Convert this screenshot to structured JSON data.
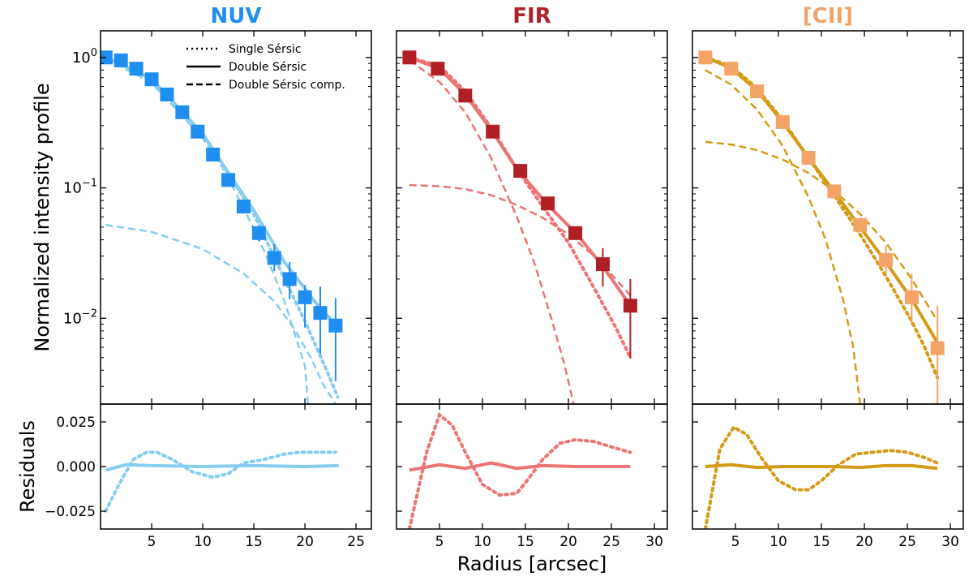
{
  "figure": {
    "ylabel_top": "Normalized intensity profile",
    "ylabel_bottom": "Residuals",
    "xlabel": "Radius [arcsec]",
    "legend": [
      {
        "style": "dotted",
        "label": "Single Sérsic"
      },
      {
        "style": "solid",
        "label": "Double Sérsic"
      },
      {
        "style": "dashed",
        "label": "Double Sérsic comp."
      }
    ],
    "log_tick_labels": [
      {
        "value": 1,
        "mantissa": "10",
        "exp": "0"
      },
      {
        "value": 0.1,
        "mantissa": "10",
        "exp": "−1"
      },
      {
        "value": 0.01,
        "mantissa": "10",
        "exp": "−2"
      }
    ],
    "resid_tick_labels": [
      {
        "value": 0.025,
        "label": "0.025"
      },
      {
        "value": 0,
        "label": "0.000"
      },
      {
        "value": -0.025,
        "label": "−0.025"
      }
    ]
  },
  "chart_data": [
    {
      "type": "scatter",
      "title": "NUV",
      "title_color": "#1f8ef1",
      "point_color": "#1e8ff0",
      "model_color": "#87cdf0",
      "xlim": [
        0,
        26.5
      ],
      "ylim": [
        0.0022,
        1.6
      ],
      "resid_ylim": [
        -0.035,
        0.035
      ],
      "xticks": [
        5,
        10,
        15,
        20,
        25
      ],
      "profile": {
        "x": [
          0.5,
          2.0,
          3.5,
          5.0,
          6.5,
          8.0,
          9.5,
          11.0,
          12.5,
          14.0,
          15.5,
          17.0,
          18.5,
          20.0,
          21.5,
          23.0
        ],
        "y": [
          1.0,
          0.95,
          0.82,
          0.68,
          0.52,
          0.38,
          0.27,
          0.18,
          0.115,
          0.072,
          0.045,
          0.029,
          0.02,
          0.0145,
          0.011,
          0.0088
        ],
        "err_lo": [
          0,
          0,
          0,
          0,
          0,
          0,
          0,
          0,
          0,
          0,
          0.006,
          0.006,
          0.006,
          0.006,
          0.0057,
          0.0055
        ],
        "err_hi": [
          0,
          0,
          0,
          0,
          0,
          0,
          0,
          0,
          0,
          0,
          0.006,
          0.008,
          0.007,
          0.0035,
          0.0065,
          0.0055
        ]
      },
      "double_sersic": {
        "x": [
          0.5,
          5,
          10,
          12,
          15,
          18,
          21,
          23
        ],
        "y": [
          1.0,
          0.68,
          0.26,
          0.15,
          0.067,
          0.027,
          0.0133,
          0.009
        ]
      },
      "single_sersic": {
        "x": [
          0.5,
          5,
          10,
          15,
          18,
          20,
          22,
          23.2
        ],
        "y": [
          1.0,
          0.68,
          0.26,
          0.063,
          0.02,
          0.0095,
          0.0042,
          0.0025
        ]
      },
      "components": [
        {
          "x": [
            0.5,
            5,
            10,
            12,
            14,
            16,
            18,
            20,
            20.3
          ],
          "y": [
            0.98,
            0.64,
            0.24,
            0.14,
            0.07,
            0.033,
            0.0135,
            0.0043,
            0.0022
          ]
        },
        {
          "x": [
            0.5,
            5,
            10,
            14,
            17,
            19,
            20.5,
            21.8,
            23
          ],
          "y": [
            0.052,
            0.046,
            0.034,
            0.022,
            0.0135,
            0.0082,
            0.0051,
            0.0031,
            0.0022
          ]
        }
      ],
      "resid_double": {
        "x": [
          0.5,
          2.5,
          5,
          10,
          15,
          20,
          23.3
        ],
        "y": [
          -0.002,
          0.001,
          0.0005,
          0.0,
          0.0005,
          0.0,
          0.0005
        ]
      },
      "resid_single": {
        "x": [
          0.5,
          1.8,
          3.2,
          4.5,
          5.5,
          7,
          9,
          11,
          12.5,
          14,
          16,
          18,
          19.5,
          21,
          23
        ],
        "y": [
          -0.025,
          -0.01,
          0.004,
          0.008,
          0.008,
          0.004,
          -0.003,
          -0.006,
          -0.004,
          0.002,
          0.004,
          0.007,
          0.008,
          0.008,
          0.008
        ]
      }
    },
    {
      "type": "scatter",
      "title": "FIR",
      "title_color": "#b0222a",
      "point_color": "#b01f24",
      "model_color": "#ec7474",
      "xlim": [
        0,
        31.5
      ],
      "ylim": [
        0.0022,
        1.6
      ],
      "resid_ylim": [
        -0.035,
        0.035
      ],
      "xticks": [
        5,
        10,
        15,
        20,
        25,
        30
      ],
      "profile": {
        "x": [
          1.5,
          4.8,
          8.0,
          11.2,
          14.4,
          17.6,
          20.8,
          24.0,
          27.2
        ],
        "y": [
          1.0,
          0.82,
          0.51,
          0.27,
          0.135,
          0.076,
          0.045,
          0.026,
          0.0125
        ],
        "err_lo": [
          0,
          0,
          0,
          0,
          0,
          0,
          0.003,
          0.0085,
          0.0076
        ],
        "err_hi": [
          0,
          0,
          0,
          0,
          0,
          0,
          0.003,
          0.0085,
          0.0075
        ]
      },
      "double_sersic": {
        "x": [
          1.5,
          5,
          8,
          11,
          14,
          17.5,
          21,
          24,
          27.2
        ],
        "y": [
          1.0,
          0.82,
          0.52,
          0.28,
          0.14,
          0.075,
          0.044,
          0.025,
          0.0125
        ]
      },
      "single_sersic": {
        "x": [
          1.5,
          5,
          8,
          11,
          14,
          17,
          20,
          23,
          25.5,
          27.2
        ],
        "y": [
          1.0,
          0.86,
          0.55,
          0.29,
          0.14,
          0.072,
          0.038,
          0.017,
          0.0085,
          0.005
        ]
      },
      "components": [
        {
          "x": [
            1.5,
            5,
            8,
            11,
            14,
            16,
            18,
            19.5,
            20.6
          ],
          "y": [
            0.95,
            0.65,
            0.38,
            0.17,
            0.06,
            0.027,
            0.01,
            0.0045,
            0.0022
          ]
        },
        {
          "x": [
            1.5,
            5,
            8,
            11,
            14,
            17,
            20,
            23,
            25.5,
            27.2
          ],
          "y": [
            0.105,
            0.103,
            0.098,
            0.088,
            0.074,
            0.059,
            0.044,
            0.03,
            0.02,
            0.015
          ]
        }
      ],
      "resid_double": {
        "x": [
          1.5,
          5,
          8,
          11,
          14,
          17,
          21,
          24,
          27.2
        ],
        "y": [
          -0.002,
          0.001,
          -0.001,
          0.002,
          -0.001,
          0.0005,
          0.0,
          0.0,
          0.0
        ]
      },
      "resid_single": {
        "x": [
          1.5,
          3.5,
          5,
          6.5,
          8,
          10,
          12,
          14,
          15.5,
          17,
          19,
          20.8,
          23,
          25,
          27.2
        ],
        "y": [
          -0.035,
          0.008,
          0.029,
          0.023,
          0.008,
          -0.01,
          -0.016,
          -0.015,
          -0.006,
          0.004,
          0.013,
          0.015,
          0.014,
          0.011,
          0.008
        ]
      }
    },
    {
      "type": "scatter",
      "title": "[CII]",
      "title_color": "#f0a46a",
      "point_color": "#f5a468",
      "model_color": "#d49b17",
      "xlim": [
        0,
        31.5
      ],
      "ylim": [
        0.0022,
        1.6
      ],
      "resid_ylim": [
        -0.035,
        0.035
      ],
      "xticks": [
        5,
        10,
        15,
        20,
        25,
        30
      ],
      "profile": {
        "x": [
          1.5,
          4.5,
          7.5,
          10.5,
          13.5,
          16.5,
          19.5,
          22.5,
          25.5,
          28.5
        ],
        "y": [
          1.0,
          0.82,
          0.55,
          0.32,
          0.17,
          0.094,
          0.052,
          0.028,
          0.0145,
          0.0059
        ],
        "err_lo": [
          0,
          0,
          0,
          0,
          0,
          0,
          0.003,
          0.006,
          0.0057,
          0.0056
        ],
        "err_hi": [
          0,
          0,
          0,
          0,
          0,
          0,
          0.003,
          0.008,
          0.0075,
          0.0066
        ]
      },
      "double_sersic": {
        "x": [
          1.5,
          4.5,
          7.5,
          10.5,
          13.5,
          16.5,
          19.5,
          22.5,
          25.5,
          28.5
        ],
        "y": [
          1.0,
          0.83,
          0.56,
          0.32,
          0.17,
          0.093,
          0.05,
          0.027,
          0.014,
          0.0065
        ]
      },
      "single_sersic": {
        "x": [
          1.5,
          4.5,
          7.5,
          10.5,
          13.5,
          16.5,
          19.5,
          22.5,
          25.5,
          27,
          28.5
        ],
        "y": [
          1.0,
          0.86,
          0.58,
          0.33,
          0.17,
          0.087,
          0.044,
          0.021,
          0.0095,
          0.006,
          0.0035
        ]
      },
      "components": [
        {
          "x": [
            1.5,
            4.5,
            7.5,
            10.5,
            13.5,
            15.5,
            17.5,
            18.7,
            19.5
          ],
          "y": [
            0.8,
            0.62,
            0.4,
            0.21,
            0.085,
            0.04,
            0.014,
            0.006,
            0.0022
          ]
        },
        {
          "x": [
            1.5,
            4.5,
            7.5,
            10.5,
            13.5,
            16.5,
            19.5,
            22.5,
            25.5,
            28.5
          ],
          "y": [
            0.225,
            0.215,
            0.195,
            0.165,
            0.13,
            0.095,
            0.063,
            0.038,
            0.02,
            0.0095
          ]
        }
      ],
      "resid_double": {
        "x": [
          1.5,
          4.5,
          7.5,
          10.5,
          13.5,
          16.5,
          19.5,
          22.5,
          25.5,
          28.5
        ],
        "y": [
          0.0,
          0.001,
          -0.0005,
          0.0,
          0.0,
          0.0,
          -0.0005,
          0.0005,
          0.0005,
          -0.001
        ]
      },
      "resid_single": {
        "x": [
          1.5,
          3.2,
          4.8,
          6.3,
          8,
          10,
          12,
          13.5,
          15,
          17,
          19,
          21,
          23,
          25,
          27,
          28.5
        ],
        "y": [
          -0.035,
          0.01,
          0.022,
          0.018,
          0.005,
          -0.008,
          -0.013,
          -0.013,
          -0.008,
          0.001,
          0.007,
          0.008,
          0.009,
          0.008,
          0.005,
          0.002
        ]
      }
    }
  ]
}
